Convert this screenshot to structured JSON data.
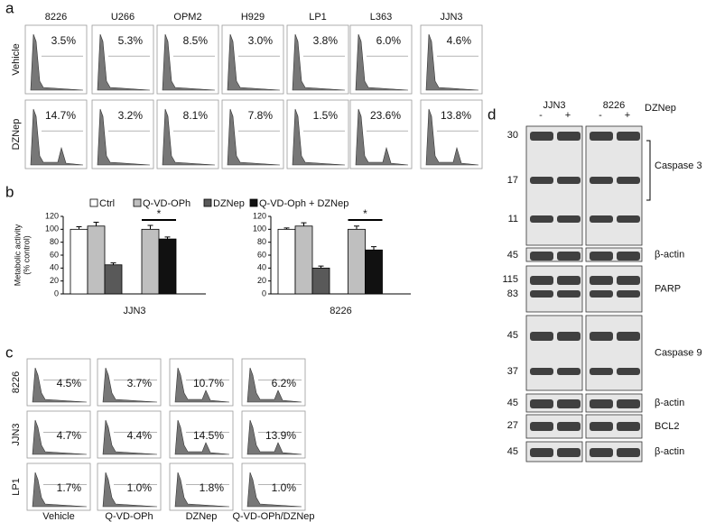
{
  "panel_labels": [
    "a",
    "b",
    "c",
    "d"
  ],
  "panel_a": {
    "cell_lines": [
      "8226",
      "U266",
      "OPM2",
      "H929",
      "LP1",
      "L363",
      "JJN3"
    ],
    "conditions": [
      "Vehicle",
      "DZNep"
    ],
    "percentages": [
      [
        "3.5%",
        "5.3%",
        "8.5%",
        "3.0%",
        "3.8%",
        "6.0%",
        "4.6%"
      ],
      [
        "14.7%",
        "3.2%",
        "8.1%",
        "7.8%",
        "1.5%",
        "23.6%",
        "13.8%"
      ]
    ]
  },
  "chart_data": [
    {
      "type": "bar",
      "x_label": "JJN3",
      "y_label": [
        "Metabolic activity",
        "(% control)"
      ],
      "annotation": "*",
      "categories": [
        null,
        null
      ],
      "ylim": [
        0,
        120
      ],
      "yticks": [
        0,
        20,
        40,
        60,
        80,
        100,
        120
      ],
      "series": [
        {
          "name": "Ctrl",
          "color": "#ffffff",
          "values": [
            100,
            null
          ],
          "errors": [
            4,
            null
          ]
        },
        {
          "name": "Q-VD-OPh",
          "color": "#bfbfbf",
          "values": [
            105,
            100
          ],
          "errors": [
            6,
            6
          ]
        },
        {
          "name": "DZNep",
          "color": "#595959",
          "values": [
            45,
            null
          ],
          "errors": [
            3,
            null
          ]
        },
        {
          "name": "Q-VD-Oph + DZNep",
          "color": "#111111",
          "values": [
            null,
            85
          ],
          "errors": [
            null,
            3
          ]
        }
      ]
    },
    {
      "type": "bar",
      "x_label": "8226",
      "annotation": "*",
      "categories": [
        null,
        null
      ],
      "ylim": [
        0,
        120
      ],
      "yticks": [
        0,
        20,
        40,
        60,
        80,
        100,
        120
      ],
      "series": [
        {
          "color": "#ffffff",
          "values": [
            100,
            null
          ],
          "errors": [
            2,
            null
          ]
        },
        {
          "color": "#bfbfbf",
          "values": [
            105,
            100
          ],
          "errors": [
            5,
            5
          ]
        },
        {
          "color": "#595959",
          "values": [
            40,
            null
          ],
          "errors": [
            3,
            null
          ]
        },
        {
          "color": "#111111",
          "values": [
            null,
            68
          ],
          "errors": [
            null,
            5
          ]
        }
      ]
    }
  ],
  "panel_c": {
    "rows": [
      "8226",
      "JJN3",
      "LP1"
    ],
    "columns": [
      "Vehicle",
      "Q-VD-OPh",
      "DZNep",
      "Q-VD-OPh/DZNep"
    ],
    "percentages": [
      [
        "4.5%",
        "3.7%",
        "10.7%",
        "6.2%"
      ],
      [
        "4.7%",
        "4.4%",
        "14.5%",
        "13.9%"
      ],
      [
        "1.7%",
        "1.0%",
        "1.8%",
        "1.0%"
      ]
    ]
  },
  "panel_d": {
    "cell_lines": [
      "JJN3",
      "8226"
    ],
    "lane_signs": [
      "-",
      "+",
      "-",
      "+"
    ],
    "treatment": "DZNep",
    "blots": [
      {
        "label": "Caspase 3",
        "markers": [
          "30",
          "17",
          "11"
        ]
      },
      {
        "label": "β-actin",
        "markers": [
          "45"
        ]
      },
      {
        "label": "PARP",
        "markers": [
          "115",
          "83"
        ]
      },
      {
        "label": "Caspase 9",
        "markers": [
          "45",
          "37"
        ]
      },
      {
        "label": "β-actin",
        "markers": [
          "45"
        ]
      },
      {
        "label": "BCL2",
        "markers": [
          "27"
        ]
      },
      {
        "label": "β-actin",
        "markers": [
          "45"
        ]
      }
    ]
  }
}
